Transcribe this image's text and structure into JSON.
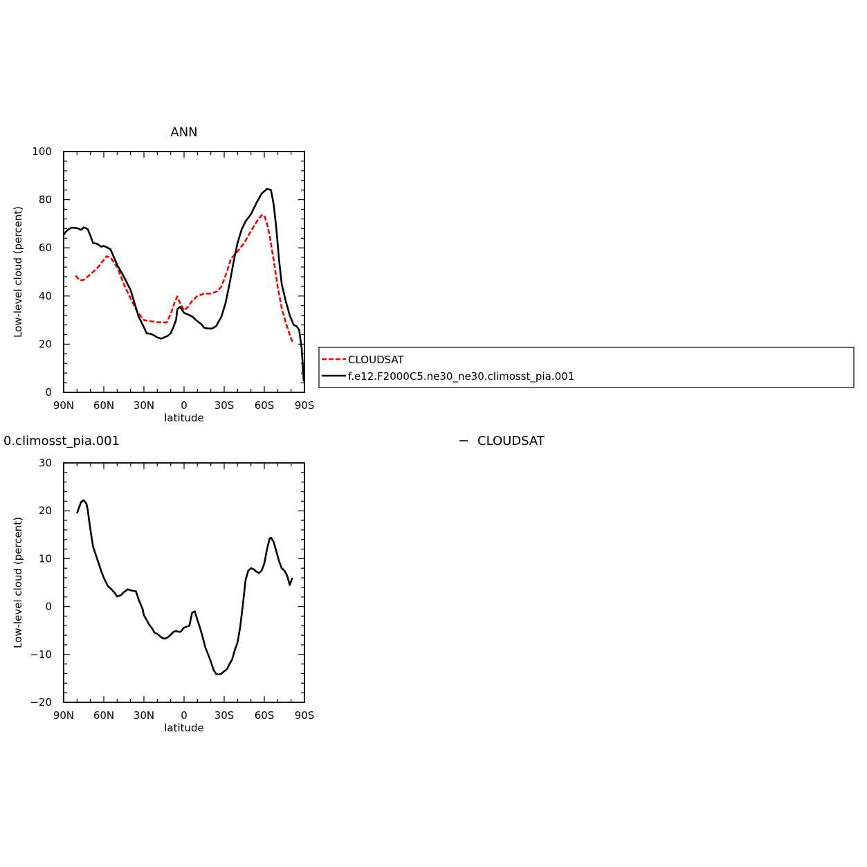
{
  "chart_data": [
    {
      "type": "line",
      "title": "ANN",
      "xlabel": "latitude",
      "ylabel": "Low-level cloud (percent)",
      "xlim": [
        90,
        -90
      ],
      "ylim": [
        0,
        100
      ],
      "xticks": [
        90,
        60,
        30,
        0,
        -30,
        -60,
        -90
      ],
      "xticklabels": [
        "90N",
        "60N",
        "30N",
        "0",
        "30S",
        "60S",
        "90S"
      ],
      "yticks": [
        0,
        20,
        40,
        60,
        80,
        100
      ],
      "yticklabels": [
        "0",
        "20",
        "40",
        "60",
        "80",
        "100"
      ],
      "grid": false,
      "legend": "right",
      "series": [
        {
          "name": "CLOUDSAT",
          "color": "#ff0000",
          "dash": "dashed",
          "x": [
            81,
            78,
            75,
            70,
            65,
            60,
            58,
            55,
            50,
            45,
            40,
            35,
            30,
            25,
            20,
            16,
            13,
            10,
            7,
            5,
            3,
            0,
            -3,
            -6,
            -10,
            -15,
            -20,
            -25,
            -28,
            -32,
            -35,
            -40,
            -45,
            -50,
            -55,
            -58,
            -60,
            -62,
            -64,
            -67,
            -70,
            -73,
            -76,
            -79,
            -81
          ],
          "y": [
            48.5,
            46.5,
            46.7,
            49,
            51.5,
            55,
            56.5,
            56,
            52,
            45,
            39,
            33.5,
            30,
            29.5,
            29.2,
            29,
            29,
            32.5,
            37.5,
            39.8,
            37,
            34,
            35.5,
            38,
            40,
            41,
            41,
            42,
            44,
            50,
            55.5,
            58.5,
            62,
            67,
            71.5,
            73.5,
            73.5,
            70,
            65,
            55,
            44,
            35,
            29,
            24,
            21
          ]
        },
        {
          "name": "f.e12.F2000C5.ne30_ne30.climosst_pia.001",
          "color": "#000000",
          "dash": "solid",
          "x": [
            90,
            87,
            84,
            80,
            77,
            75,
            72,
            70,
            68,
            65,
            62,
            60,
            58,
            55,
            50,
            45,
            40,
            37,
            34,
            30,
            28,
            25,
            22,
            20,
            17,
            14,
            12,
            10,
            8,
            6,
            5,
            3,
            0,
            -3,
            -6,
            -10,
            -13,
            -15,
            -18,
            -21,
            -24,
            -28,
            -31,
            -34,
            -37,
            -40,
            -43,
            -46,
            -50,
            -54,
            -58,
            -62,
            -65,
            -67,
            -69,
            -71,
            -73,
            -76,
            -79,
            -82,
            -84,
            -86,
            -88,
            -89.5
          ],
          "y": [
            65.5,
            67.5,
            68.4,
            68.2,
            67.5,
            68.5,
            67.8,
            65,
            62,
            61.7,
            60.5,
            60.8,
            60.3,
            59.4,
            53,
            48,
            42.5,
            37,
            31.5,
            27,
            24.5,
            24.3,
            23.5,
            22.8,
            22.3,
            23,
            23.5,
            24.5,
            27,
            30,
            34.5,
            35.5,
            33,
            32.3,
            31.5,
            29.5,
            28.3,
            26.8,
            26.5,
            26.5,
            27.5,
            31.5,
            37,
            45,
            54,
            62,
            67.5,
            71,
            74,
            78.5,
            82.5,
            84.5,
            84,
            78,
            68,
            55,
            45,
            38,
            32,
            28,
            27.5,
            26,
            18,
            4.5
          ]
        }
      ]
    },
    {
      "type": "line",
      "title": "0.climosst_pia.001",
      "subtitle": "CLOUDSAT",
      "xlabel": "latitude",
      "ylabel": "Low-level cloud (percent)",
      "xlim": [
        90,
        -90
      ],
      "ylim": [
        -20,
        30
      ],
      "xticks": [
        90,
        60,
        30,
        0,
        -30,
        -60,
        -90
      ],
      "xticklabels": [
        "90N",
        "60N",
        "30N",
        "0",
        "30S",
        "60S",
        "90S"
      ],
      "yticks": [
        -20,
        -10,
        0,
        10,
        20,
        30
      ],
      "yticklabels": [
        "−20",
        "−10",
        "0",
        "10",
        "20",
        "30"
      ],
      "grid": false,
      "series": [
        {
          "color": "#000000",
          "dash": "solid",
          "x": [
            80,
            77,
            75,
            73,
            72,
            70,
            68,
            65,
            62,
            60,
            57,
            55,
            52,
            50,
            47,
            45,
            43,
            42,
            40,
            38,
            36,
            34,
            31,
            30,
            28,
            26,
            24,
            22,
            20,
            18,
            16,
            14,
            12,
            10,
            8,
            6,
            5,
            3,
            2,
            1,
            0,
            -2,
            -4,
            -6,
            -8,
            -10,
            -12,
            -14,
            -16,
            -18,
            -20,
            -22,
            -24,
            -26,
            -28,
            -30,
            -32,
            -34,
            -36,
            -38,
            -40,
            -42,
            -44,
            -46,
            -48,
            -50,
            -52,
            -54,
            -56,
            -58,
            -60,
            -62,
            -64,
            -65,
            -67,
            -69,
            -71,
            -73,
            -75,
            -77,
            -79,
            -81
          ],
          "y": [
            19.5,
            21.8,
            22.2,
            21.5,
            20.2,
            16,
            12.5,
            10,
            7.5,
            6,
            4.3,
            3.8,
            2.9,
            2.1,
            2.4,
            3,
            3.4,
            3.6,
            3.4,
            3.3,
            3.2,
            1.5,
            -0.5,
            -1.8,
            -2.8,
            -3.8,
            -4.5,
            -5.5,
            -5.7,
            -6.2,
            -6.6,
            -6.7,
            -6.4,
            -5.9,
            -5.3,
            -5.1,
            -5.2,
            -5.3,
            -5.1,
            -4.7,
            -4.4,
            -4.2,
            -4.0,
            -1.3,
            -1.0,
            -2.8,
            -4.5,
            -6.5,
            -8.6,
            -10.0,
            -11.5,
            -13.2,
            -14.1,
            -14.2,
            -14.0,
            -13.5,
            -13.1,
            -12.0,
            -11.0,
            -9.0,
            -7.5,
            -4.2,
            0.5,
            5.5,
            7.5,
            8.0,
            7.8,
            7.3,
            7.0,
            7.5,
            9.0,
            12.0,
            14.2,
            14.4,
            13.5,
            11.5,
            9.5,
            8.0,
            7.5,
            6.5,
            4.5,
            6.0
          ]
        }
      ]
    }
  ]
}
